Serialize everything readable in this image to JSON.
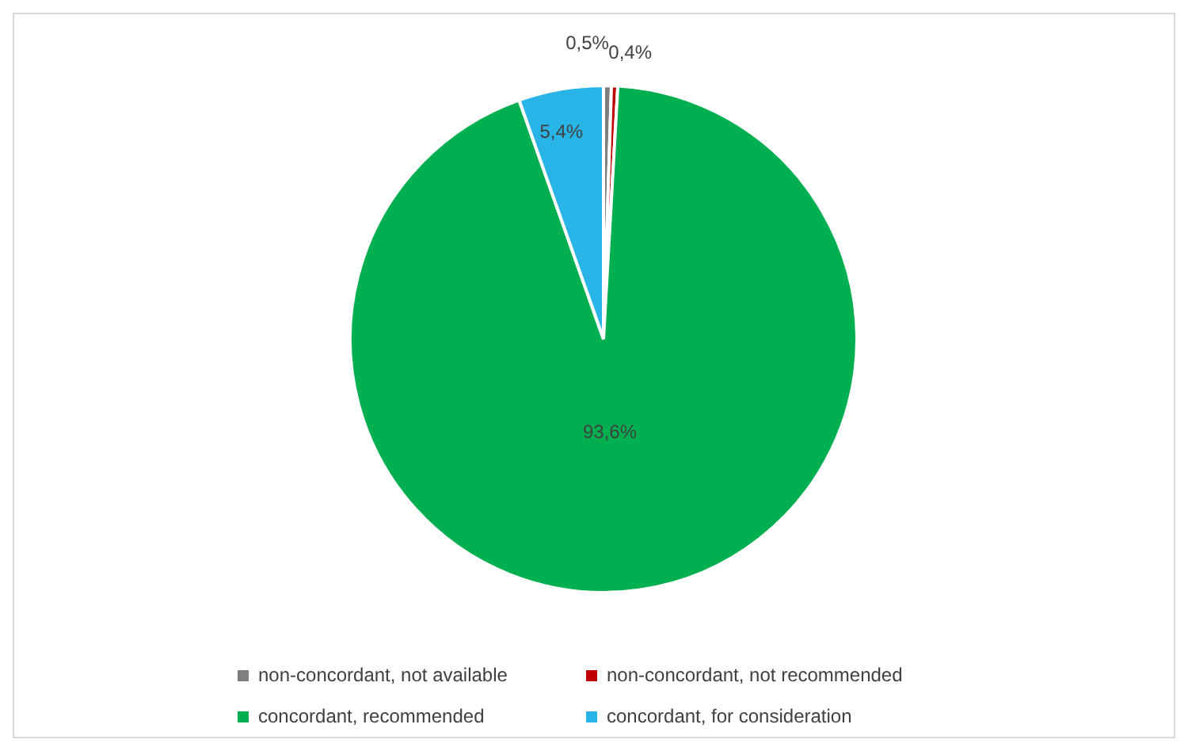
{
  "chart_data": {
    "type": "pie",
    "categories": [
      "non-concordant, not available",
      "non-concordant, not recommended",
      "concordant, recommended",
      "concordant, for consideration"
    ],
    "values": [
      0.5,
      0.4,
      93.6,
      5.4
    ],
    "colors": [
      "#7f7f7f",
      "#c00000",
      "#00b050",
      "#28b4e6"
    ],
    "value_labels": [
      "0,5%",
      "0,4%",
      "93,6%",
      "5,4%"
    ],
    "legend": "bottom"
  }
}
